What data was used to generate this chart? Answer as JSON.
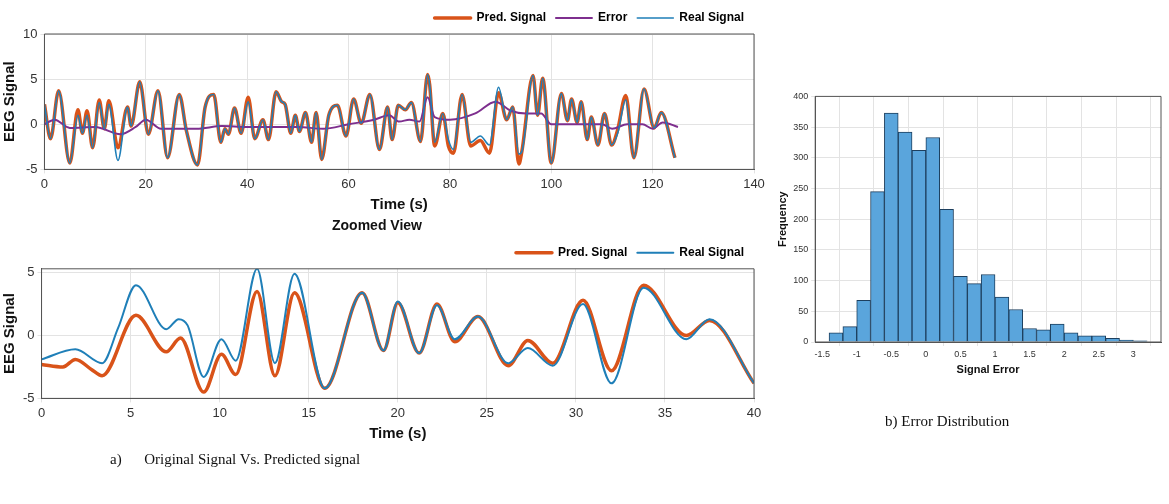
{
  "chart_data": [
    {
      "type": "line",
      "xlabel": "Time (s)",
      "ylabel": "EEG Signal",
      "xlim": [
        0,
        140
      ],
      "xticks": [
        0,
        20,
        40,
        60,
        80,
        100,
        120,
        140
      ],
      "ylim": [
        -5,
        10
      ],
      "yticks": [
        -5,
        0,
        5,
        10
      ],
      "grid": true,
      "legend": "top right",
      "marker": "none",
      "line_style": "solid",
      "series": [
        {
          "name": "Pred. Signal",
          "color": "#d95319",
          "x": [
            0,
            1.2,
            2.8,
            5,
            6.6,
            7.5,
            8.4,
            9.5,
            10.8,
            11.8,
            12.7,
            14.5,
            16.4,
            17.1,
            18.8,
            20.5,
            22.4,
            24.3,
            26.6,
            28,
            30.2,
            31.7,
            33.4,
            34.8,
            35.6,
            36.3,
            37.5,
            38.8,
            40.2,
            41.5,
            43.1,
            44.2,
            45.7,
            46.8,
            47.5,
            48.6,
            49.5,
            50.3,
            51.5,
            52.7,
            53.6,
            54.7,
            56.1,
            57.8,
            59.5,
            61,
            62.5,
            64.2,
            66.1,
            67.7,
            68.6,
            69.8,
            71.2,
            72.4,
            74.2,
            75.6,
            76,
            77,
            78.6,
            79.7,
            80.7,
            82.4,
            84.1,
            86,
            87.8,
            89.6,
            91.2,
            92.4,
            93.6,
            94.2,
            96.4,
            97.3,
            98.3,
            100,
            102,
            103.2,
            104,
            105.1,
            105.9,
            107.1,
            107.9,
            109.2,
            110.5,
            111.9,
            113.1,
            114.7,
            116.3,
            118.3,
            120.3,
            121.7,
            124.4
          ],
          "values": [
            2.2,
            -1.6,
            3.7,
            -4.3,
            1.6,
            -1,
            1.5,
            -2.6,
            2.7,
            -0.5,
            2.6,
            -2.6,
            1.9,
            -0.2,
            4.7,
            -1.1,
            3.7,
            -3.7,
            3.3,
            -0.7,
            -4.5,
            1.9,
            3.3,
            -2,
            -0.5,
            -1.1,
            1.8,
            -1,
            3,
            -1.6,
            0.5,
            -1.7,
            3.6,
            2.5,
            2.2,
            -1,
            1,
            -0.8,
            1.3,
            -2,
            1.3,
            -3.9,
            1,
            2.1,
            -1.3,
            2.8,
            0.1,
            3.3,
            -2.8,
            1.9,
            -1.7,
            2.1,
            1.6,
            2.4,
            -1.9,
            5.5,
            4.4,
            -2.4,
            1.2,
            -2.4,
            -3.2,
            3.3,
            -2.4,
            -1.8,
            -3.2,
            3.5,
            0.5,
            1.9,
            -4.4,
            -3,
            5.4,
            1,
            5.1,
            -4.3,
            3.4,
            0.4,
            2.8,
            0.2,
            2.5,
            -1.7,
            0.8,
            -2.3,
            1.2,
            -2.3,
            -0.6,
            3.2,
            -3.7,
            3.9,
            -0.4,
            1.3,
            -3.7
          ]
        },
        {
          "name": "Error",
          "color": "#7e2f8e",
          "x": [
            0,
            2,
            5,
            10,
            15,
            18,
            20,
            23,
            30,
            35,
            40,
            50,
            55,
            60,
            65,
            68,
            70,
            72,
            74,
            75.6,
            77,
            80,
            85,
            89,
            92,
            95,
            98,
            100,
            105,
            110,
            112,
            115,
            118,
            120,
            122,
            125
          ],
          "values": [
            0,
            0.5,
            -0.4,
            -0.3,
            -1.1,
            -0.3,
            0.5,
            -0.5,
            -0.5,
            -0.2,
            -0.3,
            -0.3,
            -0.5,
            0,
            0.5,
            1,
            0.3,
            0.5,
            0.3,
            3,
            0.8,
            0.5,
            1.2,
            2.5,
            1.5,
            1.2,
            1.2,
            0,
            0,
            0,
            -0.5,
            0,
            0,
            -0.5,
            0.2,
            -0.3
          ]
        },
        {
          "name": "Real Signal",
          "color": "#1f7fb8",
          "x": [
            0,
            1.2,
            2.8,
            5,
            6.6,
            7.5,
            8.4,
            9.5,
            10.8,
            11.8,
            12.7,
            14.5,
            16.4,
            17.1,
            18.8,
            20.5,
            22.4,
            24.3,
            26.6,
            28,
            30.2,
            31.7,
            33.4,
            34.8,
            35.6,
            36.3,
            37.5,
            38.8,
            40.2,
            41.5,
            43.1,
            44.2,
            45.7,
            46.8,
            47.5,
            48.6,
            49.5,
            50.3,
            51.5,
            52.7,
            53.6,
            54.7,
            56.1,
            57.8,
            59.5,
            61,
            62.5,
            64.2,
            66.1,
            67.7,
            68.6,
            69.8,
            71.2,
            72.4,
            74.2,
            75.6,
            76,
            77,
            78.6,
            79.7,
            80.7,
            82.4,
            84.1,
            86,
            87.8,
            89.6,
            91.2,
            92.4,
            93.6,
            94.2,
            96.4,
            97.3,
            98.3,
            100,
            102,
            103.2,
            104,
            105.1,
            105.9,
            107.1,
            107.9,
            109.2,
            110.5,
            111.9,
            113.1,
            114.7,
            116.3,
            118.3,
            120.3,
            121.7,
            124.4
          ],
          "values": [
            2.2,
            -1.6,
            3.7,
            -4.3,
            1,
            -1,
            1,
            -2.6,
            2.4,
            -0.5,
            2.2,
            -4,
            1.9,
            -0.2,
            4.7,
            -1.1,
            3.7,
            -3.7,
            3.3,
            -0.7,
            -4.5,
            1.9,
            3.3,
            -2,
            -0.5,
            -1.1,
            1.8,
            -1,
            2.5,
            -1.6,
            0.5,
            -1.7,
            3.6,
            2.5,
            2.2,
            -1,
            1,
            -0.8,
            1.3,
            -2,
            1.3,
            -3.9,
            1,
            2.1,
            -1.3,
            2.8,
            0.1,
            3.3,
            -2.8,
            1.9,
            -1.7,
            2.1,
            1.6,
            2.4,
            -1.9,
            5.5,
            4.4,
            -2,
            1.2,
            -1.7,
            -2.8,
            3.3,
            -2,
            -1.3,
            -2.3,
            4.1,
            0.5,
            1.9,
            -3.3,
            -3,
            5.4,
            1,
            5.1,
            -4.3,
            3.4,
            0.4,
            2.8,
            0.2,
            2.5,
            -1.7,
            0.8,
            -2.3,
            1.2,
            -2.3,
            -1,
            2.7,
            -3.7,
            3.9,
            -0.4,
            1.3,
            -3.7
          ]
        }
      ]
    },
    {
      "type": "line",
      "title": "Zoomed View",
      "xlabel": "Time (s)",
      "ylabel": "EEG Signal",
      "xlim": [
        0,
        40
      ],
      "xticks": [
        0,
        5,
        10,
        15,
        20,
        25,
        30,
        35,
        40
      ],
      "ylim": [
        -5,
        5.3
      ],
      "yticks": [
        -5,
        0,
        5
      ],
      "grid": true,
      "legend": "top right",
      "marker": "none",
      "line_style": "solid",
      "annotations": [
        "a)      Original Signal Vs. Predicted signal"
      ],
      "series": [
        {
          "name": "Pred. Signal",
          "color": "#d95319",
          "x": [
            0,
            1.2,
            1.9,
            2.8,
            3.4,
            5.3,
            7,
            7.8,
            9.1,
            10.1,
            10.9,
            12.1,
            13.1,
            14.2,
            15.9,
            18,
            19.2,
            20,
            21.2,
            22.2,
            23.2,
            24.5,
            26.2,
            27.3,
            28.7,
            30.4,
            32,
            33.8,
            36.2,
            37.5,
            40
          ],
          "values": [
            -2.3,
            -2.5,
            -1.9,
            -2.7,
            -3.2,
            1.6,
            -1.3,
            -0.2,
            -4.5,
            -1.5,
            -3.1,
            3.5,
            -3.2,
            3.4,
            -4.2,
            3.4,
            -1.2,
            2.6,
            -1.4,
            2.5,
            -0.5,
            1.5,
            -2.4,
            -0.4,
            -2.2,
            2.8,
            -2.8,
            4,
            0,
            1.2,
            -3.8
          ]
        },
        {
          "name": "Real Signal",
          "color": "#1f7fb8",
          "x": [
            0,
            1.9,
            3.4,
            4.3,
            5.3,
            7,
            7.7,
            8.2,
            9.1,
            10.1,
            10.9,
            12.1,
            13.1,
            14.2,
            15.9,
            18,
            19.2,
            20,
            21.2,
            22.2,
            23.2,
            24.5,
            26.2,
            27.3,
            28.7,
            30.4,
            32,
            33.8,
            36.2,
            37.5,
            40
          ],
          "values": [
            -1.9,
            -1.1,
            -2.2,
            0.6,
            4,
            0.5,
            1.3,
            0.8,
            -3.3,
            -0.3,
            -2,
            5.3,
            -2.2,
            4.9,
            -4.2,
            3.4,
            -1.2,
            2.7,
            -1.4,
            2.4,
            -0.3,
            1.5,
            -2.2,
            -1,
            -2.4,
            2.5,
            -3.8,
            3.8,
            -0.3,
            1.3,
            -3.8
          ]
        }
      ]
    },
    {
      "type": "histogram",
      "xlabel": "Signal Error",
      "ylabel": "Frequency",
      "color": "#5aa5dc",
      "xlim": [
        -1.6,
        3.4
      ],
      "xticks": [
        -1.5,
        -1,
        -0.5,
        0,
        0.5,
        1,
        1.5,
        2,
        2.5,
        3
      ],
      "ylim": [
        0,
        400
      ],
      "yticks": [
        0,
        50,
        100,
        150,
        200,
        250,
        300,
        350,
        400
      ],
      "grid": true,
      "annotations": [
        "b) Error Distribution"
      ],
      "bins": [
        -1.4,
        -1.2,
        -1,
        -0.8,
        -0.6,
        -0.4,
        -0.2,
        0,
        0.2,
        0.4,
        0.6,
        0.8,
        1,
        1.2,
        1.4,
        1.6,
        1.8,
        2,
        2.2,
        2.4,
        2.6,
        2.8,
        3,
        3.2
      ],
      "values": [
        15,
        25,
        68,
        245,
        373,
        342,
        312,
        333,
        216,
        107,
        95,
        110,
        73,
        53,
        22,
        20,
        29,
        15,
        10,
        10,
        6,
        3,
        2
      ]
    }
  ]
}
